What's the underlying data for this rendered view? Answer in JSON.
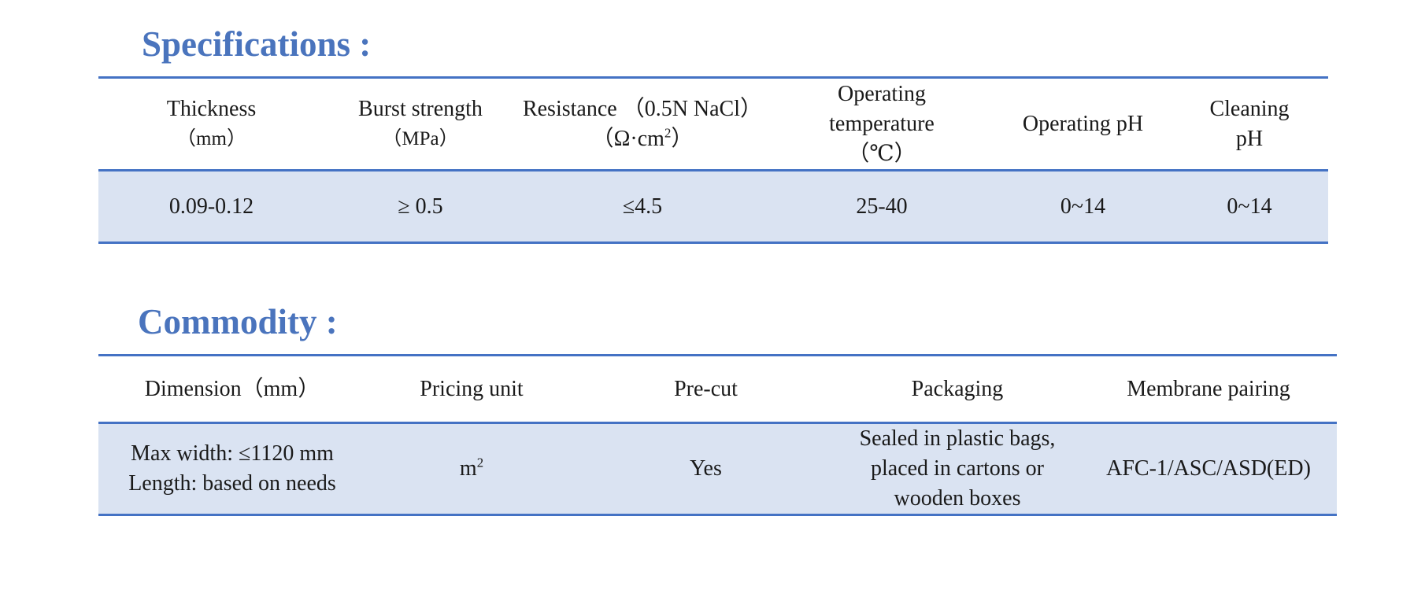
{
  "specifications": {
    "title": "Specifications :",
    "headers": [
      {
        "line1": "Thickness",
        "line2": "（mm）",
        "line3": ""
      },
      {
        "line1": "Burst strength",
        "line2": "（MPa）",
        "line3": ""
      },
      {
        "line1": "Resistance （0.5N NaCl）",
        "line2": "（Ω·cm",
        "line2_sup": "2",
        "line2_end": "）",
        "line3": ""
      },
      {
        "line1": "Operating",
        "line2": "temperature",
        "line3": "（℃）"
      },
      {
        "line1": "Operating pH",
        "line2": "",
        "line3": ""
      },
      {
        "line1": "Cleaning",
        "line2": "pH",
        "line3": ""
      }
    ],
    "values": [
      "0.09-0.12",
      "≥ 0.5",
      "≤4.5",
      "25-40",
      "0~14",
      "0~14"
    ]
  },
  "commodity": {
    "title": "Commodity :",
    "headers": [
      "Dimension（mm）",
      "Pricing unit",
      "Pre-cut",
      "Packaging",
      "Membrane pairing"
    ],
    "values": {
      "dimension_line1": "Max width: ≤1120 mm",
      "dimension_line2": "Length: based on needs",
      "pricing_unit": "m",
      "pricing_unit_sup": "2",
      "pre_cut": "Yes",
      "packaging_line1": "Sealed in plastic bags,",
      "packaging_line2": "placed in cartons or",
      "packaging_line3": "wooden boxes",
      "membrane_pairing": "AFC-1/ASC/ASD(ED)"
    }
  },
  "colors": {
    "title": "#4a74bd",
    "rule": "#4472c4",
    "row_fill": "#dae3f2"
  }
}
